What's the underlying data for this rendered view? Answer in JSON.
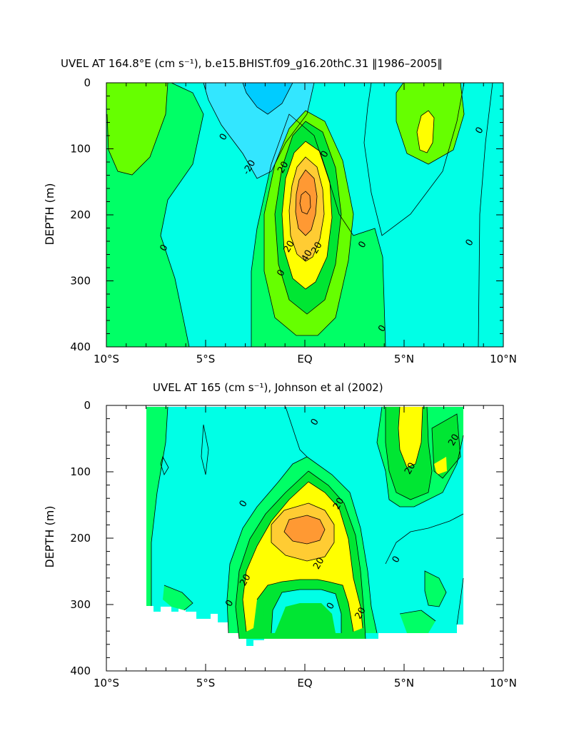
{
  "colors": {
    "band_le_-20": "#00ccff",
    "band_-20_-10": "#33e6ff",
    "band_-10_0": "#00ffe6",
    "band_0_10": "#00ff66",
    "band_10_20": "#66ff00",
    "band_20_30": "#00e633",
    "band_30_40": "#ffff00",
    "band_40_50": "#ffcc33",
    "band_ge_50": "#ff9933"
  },
  "chart_data": [
    {
      "type": "heatmap",
      "subtype": "filled contour",
      "title": "UVEL AT 164.8°E (cm s⁻¹), b.e15.BHIST.f09_g16.20thC.31 ‖1986–2005‖",
      "xlabel": "",
      "ylabel": "DEPTH (m)",
      "xlim": [
        -10,
        10
      ],
      "ylim": [
        400,
        0
      ],
      "x_ticks": [
        -10,
        -5,
        0,
        5,
        10
      ],
      "x_tick_labels": [
        "10°S",
        "5°S",
        "EQ",
        "5°N",
        "10°N"
      ],
      "y_ticks": [
        0,
        100,
        200,
        300,
        400
      ],
      "y_tick_labels": [
        "0",
        "100",
        "200",
        "300",
        "400"
      ],
      "contour_interval": 10,
      "contour_labels": [
        {
          "text": "0",
          "lat": -4.1,
          "depth": 82
        },
        {
          "text": "-20",
          "lat": -2.8,
          "depth": 128
        },
        {
          "text": "20",
          "lat": -1.1,
          "depth": 128
        },
        {
          "text": "0",
          "lat": 1.0,
          "depth": 108
        },
        {
          "text": "0",
          "lat": -7.1,
          "depth": 250
        },
        {
          "text": "20",
          "lat": -0.8,
          "depth": 248
        },
        {
          "text": "40",
          "lat": 0.1,
          "depth": 262
        },
        {
          "text": "20",
          "lat": 0.6,
          "depth": 250
        },
        {
          "text": "0",
          "lat": 2.9,
          "depth": 245
        },
        {
          "text": "0",
          "lat": -1.2,
          "depth": 288
        },
        {
          "text": "0",
          "lat": 3.9,
          "depth": 372
        },
        {
          "text": "0",
          "lat": 8.8,
          "depth": 72
        },
        {
          "text": "0",
          "lat": 8.3,
          "depth": 242
        }
      ]
    },
    {
      "type": "heatmap",
      "subtype": "filled contour",
      "title": "UVEL AT 165 (cm s⁻¹), Johnson et al (2002)",
      "xlabel": "",
      "ylabel": "DEPTH (m)",
      "xlim": [
        -10,
        10
      ],
      "ylim": [
        400,
        0
      ],
      "x_ticks": [
        -10,
        -5,
        0,
        5,
        10
      ],
      "x_tick_labels": [
        "10°S",
        "5°S",
        "EQ",
        "5°N",
        "10°N"
      ],
      "y_ticks": [
        0,
        100,
        200,
        300,
        400
      ],
      "y_tick_labels": [
        "0",
        "100",
        "200",
        "300",
        "400"
      ],
      "data_extent": {
        "lat": [
          -8,
          8
        ],
        "depth": [
          0,
          365
        ]
      },
      "contour_interval": 10,
      "contour_labels": [
        {
          "text": "0",
          "lat": 0.5,
          "depth": 25
        },
        {
          "text": "20",
          "lat": 7.5,
          "depth": 52
        },
        {
          "text": "20",
          "lat": 5.3,
          "depth": 95
        },
        {
          "text": "0",
          "lat": -3.1,
          "depth": 148
        },
        {
          "text": "20",
          "lat": 1.7,
          "depth": 148
        },
        {
          "text": "0",
          "lat": 4.6,
          "depth": 232
        },
        {
          "text": "20",
          "lat": 0.7,
          "depth": 238
        },
        {
          "text": "20",
          "lat": -3.0,
          "depth": 263
        },
        {
          "text": "0",
          "lat": 1.3,
          "depth": 302
        },
        {
          "text": "0",
          "lat": -3.8,
          "depth": 298
        },
        {
          "text": "20",
          "lat": 2.8,
          "depth": 313
        }
      ]
    }
  ]
}
